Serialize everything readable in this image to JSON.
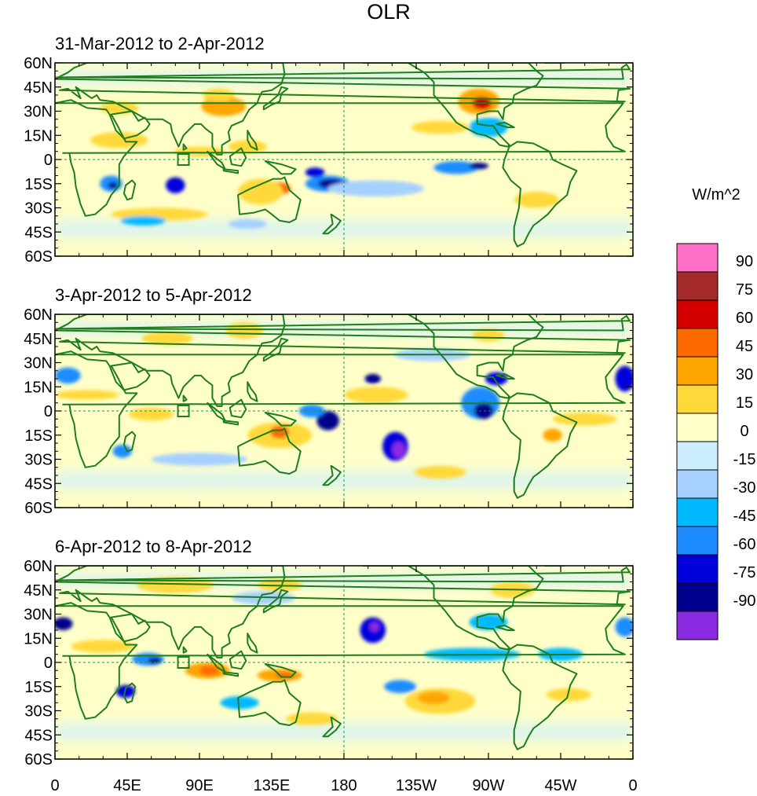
{
  "figure": {
    "title": "OLR",
    "units": "W/m^2"
  },
  "panels": [
    {
      "subtitle": "31-Mar-2012 to 2-Apr-2012"
    },
    {
      "subtitle": "3-Apr-2012 to 5-Apr-2012"
    },
    {
      "subtitle": "6-Apr-2012 to 8-Apr-2012"
    }
  ],
  "axes": {
    "lon_range": [
      0,
      360
    ],
    "lat_range": [
      -60,
      60
    ],
    "lon_ticks": [
      {
        "value": 0,
        "label": "0"
      },
      {
        "value": 45,
        "label": "45E"
      },
      {
        "value": 90,
        "label": "90E"
      },
      {
        "value": 135,
        "label": "135E"
      },
      {
        "value": 180,
        "label": "180"
      },
      {
        "value": 225,
        "label": "135W"
      },
      {
        "value": 270,
        "label": "90W"
      },
      {
        "value": 315,
        "label": "45W"
      },
      {
        "value": 360,
        "label": "0"
      }
    ],
    "lat_ticks": [
      {
        "value": 60,
        "label": "60N"
      },
      {
        "value": 45,
        "label": "45N"
      },
      {
        "value": 30,
        "label": "30N"
      },
      {
        "value": 15,
        "label": "15N"
      },
      {
        "value": 0,
        "label": "0"
      },
      {
        "value": -15,
        "label": "15S"
      },
      {
        "value": -30,
        "label": "30S"
      },
      {
        "value": -45,
        "label": "45S"
      },
      {
        "value": -60,
        "label": "60S"
      }
    ]
  },
  "colorbar": {
    "levels": [
      90,
      75,
      60,
      45,
      30,
      15,
      0,
      -15,
      -30,
      -45,
      -60,
      -75,
      -90
    ],
    "colors": [
      "#ff6ec7",
      "#a52a2a",
      "#d20000",
      "#ff6a00",
      "#ffa500",
      "#ffd93a",
      "#ffffc8",
      "#cceeff",
      "#a6d0ff",
      "#00b9ff",
      "#1e8cff",
      "#0000dc",
      "#00008c",
      "#8a2be2"
    ]
  },
  "colors": {
    "coast": "#1e7d1e",
    "guide": "#2e8b57",
    "marker_box": "#1e7d1e"
  },
  "chart_data": {
    "type": "heatmap",
    "title": "OLR",
    "units": "W/m^2",
    "x": "longitude (0 to 360)",
    "y": "latitude (60S to 60N)",
    "features": [
      [
        {
          "lon": 105,
          "lat": 33,
          "rx": 14,
          "ry": 6,
          "v": 45
        },
        {
          "lon": 102,
          "lat": 40,
          "rx": 10,
          "ry": 4,
          "v": 30
        },
        {
          "lon": 264,
          "lat": 36,
          "rx": 13,
          "ry": 8,
          "v": 45
        },
        {
          "lon": 266,
          "lat": 35,
          "rx": 6,
          "ry": 4,
          "v": 75
        },
        {
          "lon": 138,
          "lat": -18,
          "rx": 9,
          "ry": 4,
          "v": 60
        },
        {
          "lon": 128,
          "lat": -20,
          "rx": 14,
          "ry": 8,
          "v": 30
        },
        {
          "lon": 120,
          "lat": 8,
          "rx": 12,
          "ry": 4,
          "v": 30
        },
        {
          "lon": 40,
          "lat": 12,
          "rx": 18,
          "ry": 5,
          "v": 30
        },
        {
          "lon": 90,
          "lat": 5,
          "rx": 16,
          "ry": 3,
          "v": 30
        },
        {
          "lon": 65,
          "lat": -34,
          "rx": 30,
          "ry": 4,
          "v": 30
        },
        {
          "lon": 240,
          "lat": 20,
          "rx": 18,
          "ry": 4,
          "v": 30
        },
        {
          "lon": 300,
          "lat": -25,
          "rx": 14,
          "ry": 5,
          "v": 30
        },
        {
          "lon": 40,
          "lat": 32,
          "rx": 12,
          "ry": 4,
          "v": 30
        },
        {
          "lon": 170,
          "lat": -15,
          "rx": 14,
          "ry": 5,
          "v": -45
        },
        {
          "lon": 172,
          "lat": -15,
          "rx": 8,
          "ry": 3,
          "v": -75
        },
        {
          "lon": 162,
          "lat": -8,
          "rx": 6,
          "ry": 3,
          "v": -60
        },
        {
          "lon": 200,
          "lat": -18,
          "rx": 30,
          "ry": 5,
          "v": -15
        },
        {
          "lon": 250,
          "lat": -5,
          "rx": 14,
          "ry": 4,
          "v": -45
        },
        {
          "lon": 264,
          "lat": -4,
          "rx": 6,
          "ry": 2,
          "v": -75
        },
        {
          "lon": 35,
          "lat": -15,
          "rx": 7,
          "ry": 5,
          "v": -45
        },
        {
          "lon": 36,
          "lat": -16,
          "rx": 3,
          "ry": 2,
          "v": -75
        },
        {
          "lon": 75,
          "lat": -16,
          "rx": 6,
          "ry": 5,
          "v": -60
        },
        {
          "lon": 55,
          "lat": -38,
          "rx": 14,
          "ry": 3,
          "v": -30
        },
        {
          "lon": 270,
          "lat": 20,
          "rx": 12,
          "ry": 6,
          "v": -30
        },
        {
          "lon": 120,
          "lat": -40,
          "rx": 12,
          "ry": 3,
          "v": -15
        }
      ],
      [
        {
          "lon": 118,
          "lat": 50,
          "rx": 12,
          "ry": 5,
          "v": 30
        },
        {
          "lon": 70,
          "lat": 45,
          "rx": 16,
          "ry": 4,
          "v": 30
        },
        {
          "lon": 140,
          "lat": -15,
          "rx": 20,
          "ry": 8,
          "v": 30
        },
        {
          "lon": 140,
          "lat": -13,
          "rx": 6,
          "ry": 4,
          "v": 60
        },
        {
          "lon": 60,
          "lat": -2,
          "rx": 14,
          "ry": 4,
          "v": 30
        },
        {
          "lon": 200,
          "lat": 10,
          "rx": 20,
          "ry": 5,
          "v": 30
        },
        {
          "lon": 330,
          "lat": -5,
          "rx": 20,
          "ry": 4,
          "v": 30
        },
        {
          "lon": 310,
          "lat": -15,
          "rx": 6,
          "ry": 4,
          "v": 45
        },
        {
          "lon": 20,
          "lat": 10,
          "rx": 20,
          "ry": 3,
          "v": 30
        },
        {
          "lon": 240,
          "lat": -38,
          "rx": 16,
          "ry": 4,
          "v": 30
        },
        {
          "lon": 270,
          "lat": 47,
          "rx": 10,
          "ry": 4,
          "v": 30
        },
        {
          "lon": 170,
          "lat": -6,
          "rx": 7,
          "ry": 6,
          "v": -75
        },
        {
          "lon": 160,
          "lat": 0,
          "rx": 8,
          "ry": 4,
          "v": -45
        },
        {
          "lon": 212,
          "lat": -22,
          "rx": 8,
          "ry": 9,
          "v": -60
        },
        {
          "lon": 214,
          "lat": -24,
          "rx": 4,
          "ry": 5,
          "v": -90
        },
        {
          "lon": 198,
          "lat": 20,
          "rx": 5,
          "ry": 3,
          "v": -75
        },
        {
          "lon": 265,
          "lat": 5,
          "rx": 12,
          "ry": 10,
          "v": -45
        },
        {
          "lon": 267,
          "lat": 0,
          "rx": 6,
          "ry": 5,
          "v": -75
        },
        {
          "lon": 275,
          "lat": 20,
          "rx": 7,
          "ry": 4,
          "v": -60
        },
        {
          "lon": 355,
          "lat": 20,
          "rx": 6,
          "ry": 8,
          "v": -60
        },
        {
          "lon": 8,
          "lat": 22,
          "rx": 8,
          "ry": 5,
          "v": -45
        },
        {
          "lon": 42,
          "lat": -25,
          "rx": 6,
          "ry": 4,
          "v": -45
        },
        {
          "lon": 90,
          "lat": -30,
          "rx": 30,
          "ry": 4,
          "v": -15
        },
        {
          "lon": 235,
          "lat": 35,
          "rx": 24,
          "ry": 4,
          "v": -15
        }
      ],
      [
        {
          "lon": 240,
          "lat": -24,
          "rx": 22,
          "ry": 8,
          "v": 30
        },
        {
          "lon": 236,
          "lat": -22,
          "rx": 10,
          "ry": 4,
          "v": 45
        },
        {
          "lon": 95,
          "lat": -5,
          "rx": 14,
          "ry": 5,
          "v": 45
        },
        {
          "lon": 96,
          "lat": -5,
          "rx": 6,
          "ry": 3,
          "v": 60
        },
        {
          "lon": 140,
          "lat": -8,
          "rx": 14,
          "ry": 4,
          "v": 45
        },
        {
          "lon": 143,
          "lat": -8,
          "rx": 6,
          "ry": 2,
          "v": 60
        },
        {
          "lon": 75,
          "lat": 48,
          "rx": 24,
          "ry": 5,
          "v": 30
        },
        {
          "lon": 140,
          "lat": 48,
          "rx": 14,
          "ry": 4,
          "v": 30
        },
        {
          "lon": 285,
          "lat": 45,
          "rx": 14,
          "ry": 5,
          "v": 30
        },
        {
          "lon": 160,
          "lat": -35,
          "rx": 16,
          "ry": 4,
          "v": 30
        },
        {
          "lon": 30,
          "lat": 10,
          "rx": 20,
          "ry": 4,
          "v": 30
        },
        {
          "lon": 320,
          "lat": -20,
          "rx": 14,
          "ry": 4,
          "v": 30
        },
        {
          "lon": 198,
          "lat": 20,
          "rx": 8,
          "ry": 8,
          "v": -60
        },
        {
          "lon": 199,
          "lat": 22,
          "rx": 3,
          "ry": 3,
          "v": -90
        },
        {
          "lon": 44,
          "lat": -18,
          "rx": 6,
          "ry": 4,
          "v": -60
        },
        {
          "lon": 58,
          "lat": 2,
          "rx": 10,
          "ry": 4,
          "v": -45
        },
        {
          "lon": 62,
          "lat": 1,
          "rx": 4,
          "ry": 2,
          "v": -75
        },
        {
          "lon": 5,
          "lat": 24,
          "rx": 6,
          "ry": 4,
          "v": -75
        },
        {
          "lon": 355,
          "lat": 22,
          "rx": 6,
          "ry": 6,
          "v": -45
        },
        {
          "lon": 215,
          "lat": -15,
          "rx": 10,
          "ry": 4,
          "v": -45
        },
        {
          "lon": 260,
          "lat": 5,
          "rx": 30,
          "ry": 4,
          "v": -30
        },
        {
          "lon": 315,
          "lat": 5,
          "rx": 14,
          "ry": 4,
          "v": -30
        },
        {
          "lon": 270,
          "lat": 25,
          "rx": 12,
          "ry": 5,
          "v": -30
        },
        {
          "lon": 115,
          "lat": -25,
          "rx": 12,
          "ry": 4,
          "v": -30
        },
        {
          "lon": 130,
          "lat": 40,
          "rx": 20,
          "ry": 4,
          "v": -15
        }
      ]
    ]
  }
}
